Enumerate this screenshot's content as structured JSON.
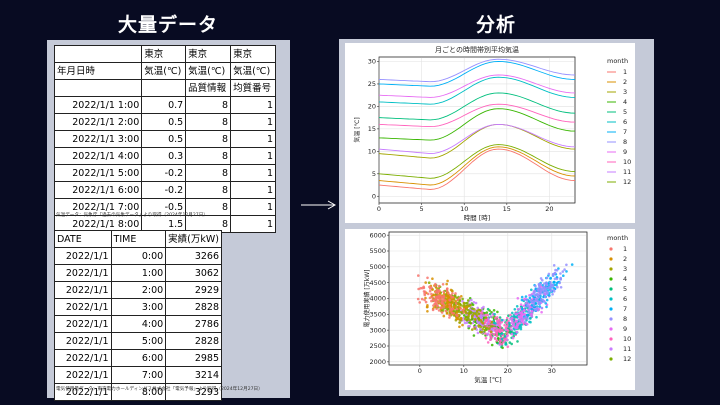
{
  "headings": {
    "left": "大量データ",
    "right": "分析"
  },
  "temp_table": {
    "header_rows": [
      [
        "",
        "東京",
        "東京",
        "東京"
      ],
      [
        "年月日時",
        "気温(℃)",
        "気温(℃)",
        "気温(℃)"
      ],
      [
        "",
        "",
        "品質情報",
        "均質番号"
      ]
    ],
    "rows": [
      [
        "2022/1/1 1:00",
        "0.7",
        "8",
        "1"
      ],
      [
        "2022/1/1 2:00",
        "0.5",
        "8",
        "1"
      ],
      [
        "2022/1/1 3:00",
        "0.5",
        "8",
        "1"
      ],
      [
        "2022/1/1 4:00",
        "0.3",
        "8",
        "1"
      ],
      [
        "2022/1/1 5:00",
        "-0.2",
        "8",
        "1"
      ],
      [
        "2022/1/1 6:00",
        "-0.2",
        "8",
        "1"
      ],
      [
        "2022/1/1 7:00",
        "-0.5",
        "8",
        "1"
      ],
      [
        "2022/1/1 8:00",
        "1.5",
        "8",
        "1"
      ]
    ],
    "source": "気温データ：気象庁「過去の気象データ」より取得（2024年12月27日）"
  },
  "power_table": {
    "header": [
      "DATE",
      "TIME",
      "実績(万kW)"
    ],
    "rows": [
      [
        "2022/1/1",
        "0:00",
        "3266"
      ],
      [
        "2022/1/1",
        "1:00",
        "3062"
      ],
      [
        "2022/1/1",
        "2:00",
        "2929"
      ],
      [
        "2022/1/1",
        "3:00",
        "2828"
      ],
      [
        "2022/1/1",
        "4:00",
        "2786"
      ],
      [
        "2022/1/1",
        "5:00",
        "2828"
      ],
      [
        "2022/1/1",
        "6:00",
        "2985"
      ],
      [
        "2022/1/1",
        "7:00",
        "3214"
      ],
      [
        "2022/1/1",
        "8:00",
        "3293"
      ]
    ],
    "source": "電気使用量データ：東京電力ホールディングス株式会社「電気予報」より取得（2024年12月27日）"
  },
  "arrow": {
    "icon": "arrow-right-icon"
  },
  "chart_data": [
    {
      "type": "line",
      "title": "月ごとの時間帯別平均気温",
      "xlabel": "時間 [時]",
      "ylabel": "気温 [℃]",
      "xlim": [
        0,
        23
      ],
      "ylim": [
        -1.5,
        31
      ],
      "xticks": [
        0,
        5,
        10,
        15,
        20
      ],
      "yticks": [
        0,
        5,
        10,
        15,
        20,
        25,
        30
      ],
      "grid": true,
      "legend_title": "month",
      "legend_position": "right",
      "x": [
        0,
        6,
        14,
        23
      ],
      "series": [
        {
          "name": "1",
          "color": "#f8766d",
          "values": [
            2.5,
            1.5,
            10.5,
            3.5
          ]
        },
        {
          "name": "2",
          "color": "#d89000",
          "values": [
            3.5,
            2.5,
            11.0,
            4.5
          ]
        },
        {
          "name": "3",
          "color": "#a3a500",
          "values": [
            9.5,
            8.5,
            16.0,
            10.5
          ]
        },
        {
          "name": "4",
          "color": "#39b600",
          "values": [
            13.0,
            12.5,
            19.5,
            14.5
          ]
        },
        {
          "name": "5",
          "color": "#00bf7d",
          "values": [
            17.5,
            17.0,
            23.0,
            18.5
          ]
        },
        {
          "name": "6",
          "color": "#00bfc4",
          "values": [
            21.0,
            20.5,
            26.5,
            22.0
          ]
        },
        {
          "name": "7",
          "color": "#00b0f6",
          "values": [
            25.0,
            24.5,
            30.0,
            26.0
          ]
        },
        {
          "name": "8",
          "color": "#9590ff",
          "values": [
            26.0,
            25.5,
            30.5,
            27.0
          ]
        },
        {
          "name": "9",
          "color": "#e76bf3",
          "values": [
            22.5,
            22.0,
            27.0,
            23.0
          ]
        },
        {
          "name": "10",
          "color": "#ff62bc",
          "values": [
            16.0,
            15.5,
            20.5,
            16.5
          ]
        },
        {
          "name": "11",
          "color": "#c77cff",
          "values": [
            10.5,
            9.5,
            16.0,
            11.0
          ]
        },
        {
          "name": "12",
          "color": "#7cae00",
          "values": [
            5.0,
            4.0,
            11.5,
            5.5
          ]
        }
      ]
    },
    {
      "type": "scatter",
      "xlabel": "気温 [℃]",
      "ylabel": "電力使用実績 [万kW]",
      "xlim": [
        -7,
        38
      ],
      "ylim": [
        1900,
        6100
      ],
      "xticks": [
        0,
        10,
        20,
        30
      ],
      "yticks": [
        2000,
        2500,
        3000,
        3500,
        4000,
        4500,
        5000,
        5500,
        6000
      ],
      "grid": true,
      "legend_title": "month",
      "legend_position": "right",
      "series": [
        {
          "name": "1",
          "color": "#f8766d",
          "center_temp": 5,
          "center_power": 3900
        },
        {
          "name": "2",
          "color": "#d89000",
          "center_temp": 6,
          "center_power": 3800
        },
        {
          "name": "3",
          "color": "#a3a500",
          "center_temp": 11,
          "center_power": 3300
        },
        {
          "name": "4",
          "color": "#39b600",
          "center_temp": 15,
          "center_power": 2900
        },
        {
          "name": "5",
          "color": "#00bf7d",
          "center_temp": 19,
          "center_power": 2800
        },
        {
          "name": "6",
          "color": "#00bfc4",
          "center_temp": 23,
          "center_power": 3300
        },
        {
          "name": "7",
          "color": "#00b0f6",
          "center_temp": 28,
          "center_power": 4300
        },
        {
          "name": "8",
          "color": "#9590ff",
          "center_temp": 28,
          "center_power": 4400
        },
        {
          "name": "9",
          "color": "#e76bf3",
          "center_temp": 24,
          "center_power": 3600
        },
        {
          "name": "10",
          "color": "#ff62bc",
          "center_temp": 18,
          "center_power": 2900
        },
        {
          "name": "11",
          "color": "#c77cff",
          "center_temp": 13,
          "center_power": 3100
        },
        {
          "name": "12",
          "color": "#7cae00",
          "center_temp": 7,
          "center_power": 3700
        }
      ]
    }
  ]
}
